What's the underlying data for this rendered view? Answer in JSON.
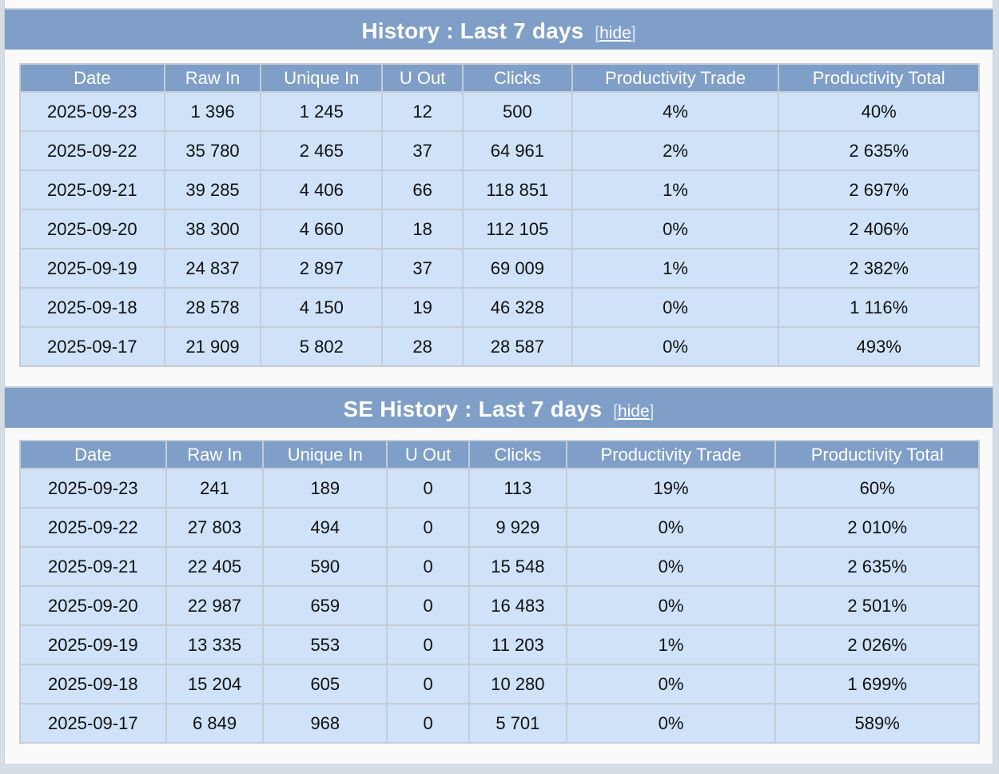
{
  "columns": [
    "Date",
    "Raw In",
    "Unique In",
    "U Out",
    "Clicks",
    "Productivity Trade",
    "Productivity Total"
  ],
  "hide_label": "hide",
  "history": {
    "title": "History : Last 7 days",
    "rows": [
      [
        "2025-09-23",
        "1 396",
        "1 245",
        "12",
        "500",
        "4%",
        "40%"
      ],
      [
        "2025-09-22",
        "35 780",
        "2 465",
        "37",
        "64 961",
        "2%",
        "2 635%"
      ],
      [
        "2025-09-21",
        "39 285",
        "4 406",
        "66",
        "118 851",
        "1%",
        "2 697%"
      ],
      [
        "2025-09-20",
        "38 300",
        "4 660",
        "18",
        "112 105",
        "0%",
        "2 406%"
      ],
      [
        "2025-09-19",
        "24 837",
        "2 897",
        "37",
        "69 009",
        "1%",
        "2 382%"
      ],
      [
        "2025-09-18",
        "28 578",
        "4 150",
        "19",
        "46 328",
        "0%",
        "1 116%"
      ],
      [
        "2025-09-17",
        "21 909",
        "5 802",
        "28",
        "28 587",
        "0%",
        "493%"
      ]
    ]
  },
  "se_history": {
    "title": "SE History : Last 7 days",
    "rows": [
      [
        "2025-09-23",
        "241",
        "189",
        "0",
        "113",
        "19%",
        "60%"
      ],
      [
        "2025-09-22",
        "27 803",
        "494",
        "0",
        "9 929",
        "0%",
        "2 010%"
      ],
      [
        "2025-09-21",
        "22 405",
        "590",
        "0",
        "15 548",
        "0%",
        "2 635%"
      ],
      [
        "2025-09-20",
        "22 987",
        "659",
        "0",
        "16 483",
        "0%",
        "2 501%"
      ],
      [
        "2025-09-19",
        "13 335",
        "553",
        "0",
        "11 203",
        "1%",
        "2 026%"
      ],
      [
        "2025-09-18",
        "15 204",
        "605",
        "0",
        "10 280",
        "0%",
        "1 699%"
      ],
      [
        "2025-09-17",
        "6 849",
        "968",
        "0",
        "5 701",
        "0%",
        "589%"
      ]
    ]
  },
  "colors": {
    "header_bg": "#7f9fc8",
    "cell_bg": "#cfe2f8",
    "border": "#c4ccd6"
  }
}
